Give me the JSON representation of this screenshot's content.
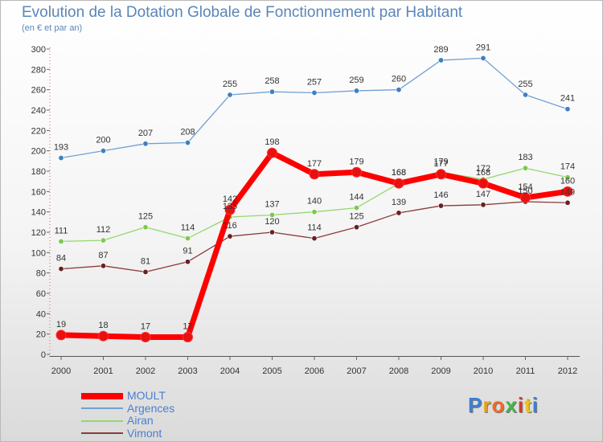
{
  "title": "Evolution de la Dotation Globale de Fonctionnement par Habitant",
  "subtitle": "(en € et par an)",
  "logo": {
    "text": "Proxiti",
    "colors": [
      "#3b7fd4",
      "#e8a01e",
      "#f06a28",
      "#42b649",
      "#d93a2b",
      "#f0c020",
      "#3b7fd4"
    ]
  },
  "chart_data": {
    "type": "line",
    "title": "Evolution de la Dotation Globale de Fonctionnement par Habitant",
    "subtitle": "(en € et par an)",
    "xlabel": "",
    "ylabel": "",
    "x": [
      "2000",
      "2001",
      "2002",
      "2003",
      "2004",
      "2005",
      "2006",
      "2007",
      "2008",
      "2009",
      "2010",
      "2011",
      "2012"
    ],
    "yticks": [
      "0",
      "20",
      "40",
      "60",
      "80",
      "100",
      "120",
      "140",
      "160",
      "180",
      "200",
      "220",
      "240",
      "260",
      "280",
      "300"
    ],
    "ylim": [
      0,
      300
    ],
    "grid": false,
    "legend_position": "bottom-left",
    "series": [
      {
        "name": "MOULT",
        "color": "#ff0000",
        "marker": "#e81010",
        "width": 7,
        "values": [
          19,
          18,
          17,
          17,
          142,
          198,
          177,
          179,
          168,
          177,
          168,
          154,
          160
        ],
        "labels": [
          "19",
          "18",
          "17",
          "17",
          "142",
          "198",
          "177",
          "179",
          "168",
          "177",
          "168",
          "154",
          "160"
        ]
      },
      {
        "name": "Argences",
        "color": "#6fa1d4",
        "marker": "#3f80c0",
        "width": 1.3,
        "values": [
          193,
          200,
          207,
          208,
          255,
          258,
          257,
          259,
          260,
          289,
          291,
          255,
          241
        ],
        "labels": [
          "193",
          "200",
          "207",
          "208",
          "255",
          "258",
          "257",
          "259",
          "260",
          "289",
          "291",
          "255",
          "241"
        ]
      },
      {
        "name": "Airan",
        "color": "#94d86e",
        "marker": "#7cc94f",
        "width": 1.3,
        "values": [
          111,
          112,
          125,
          114,
          135,
          137,
          140,
          144,
          168,
          179,
          172,
          183,
          174
        ],
        "labels": [
          "111",
          "112",
          "125",
          "114",
          "135",
          "137",
          "140",
          "144",
          "168",
          "179",
          "172",
          "183",
          "174"
        ]
      },
      {
        "name": "Vimont",
        "color": "#8a3a3a",
        "marker": "#6a2020",
        "width": 1.3,
        "values": [
          84,
          87,
          81,
          91,
          116,
          120,
          114,
          125,
          139,
          146,
          147,
          150,
          149
        ],
        "labels": [
          "84",
          "87",
          "81",
          "91",
          "116",
          "120",
          "114",
          "125",
          "139",
          "146",
          "147",
          "150",
          "149"
        ]
      }
    ]
  }
}
